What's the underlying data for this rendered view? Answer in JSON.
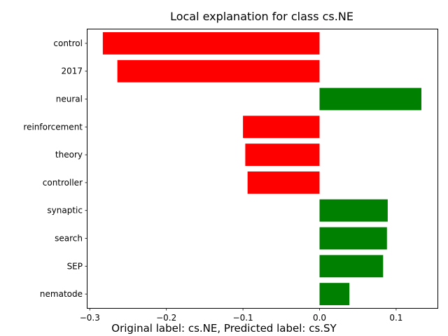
{
  "chart_data": {
    "type": "bar",
    "orientation": "horizontal",
    "title": "Local explanation for class cs.NE",
    "categories": [
      "control",
      "2017",
      "neural",
      "reinforcement",
      "theory",
      "controller",
      "synaptic",
      "search",
      "SEP",
      "nematode"
    ],
    "values": [
      -0.283,
      -0.264,
      0.133,
      -0.1,
      -0.097,
      -0.094,
      0.089,
      0.088,
      0.083,
      0.039
    ],
    "xlim": [
      -0.303,
      0.154
    ],
    "xticks": [
      -0.3,
      -0.2,
      -0.1,
      0.0,
      0.1
    ],
    "xtick_labels": [
      "−0.3",
      "−0.2",
      "−0.1",
      "0.0",
      "0.1"
    ],
    "colors": {
      "positive": "#008000",
      "negative": "#ff0000"
    },
    "grid": false,
    "legend": "none"
  },
  "caption": "Original label: cs.NE, Predicted label: cs.SY"
}
